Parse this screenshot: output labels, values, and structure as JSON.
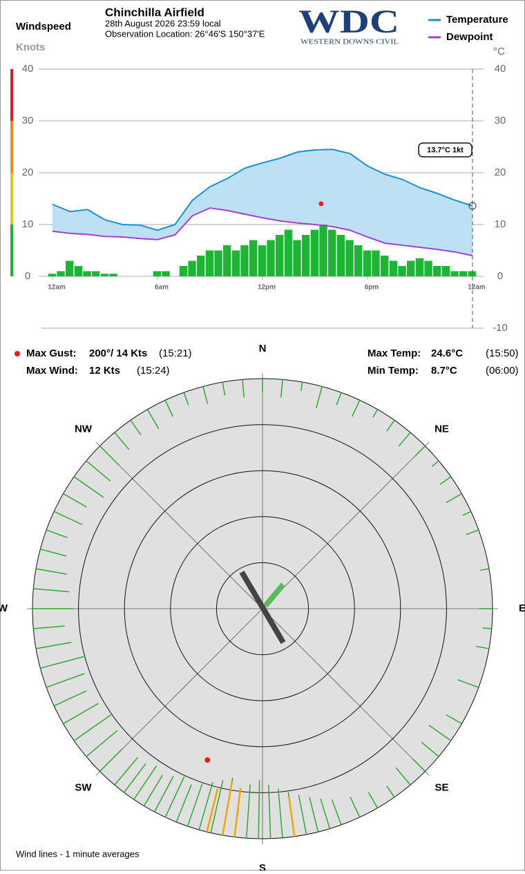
{
  "header": {
    "title": "Chinchilla Airfield",
    "date": "28th August 2026  23:59 local",
    "location": "Observation Location: 26°46'S 150°37'E",
    "logo": "WDC",
    "logo_sub": "WESTERN DOWNS CIVIL"
  },
  "chart_data": {
    "type": "line",
    "y_label": "Windspeed",
    "y_unit": "Knots",
    "y2_unit": "°C",
    "xlim": [
      0,
      24
    ],
    "xticks": [
      {
        "value": 0,
        "label": "12am"
      },
      {
        "value": 6,
        "label": "6am"
      },
      {
        "value": 12,
        "label": "12pm"
      },
      {
        "value": 18,
        "label": "6pm"
      },
      {
        "value": 24,
        "label": "12am"
      }
    ],
    "ylim": [
      0,
      40
    ],
    "yticks": [
      0,
      10,
      20,
      30,
      40
    ],
    "y2lim": [
      -10,
      40
    ],
    "y2ticks": [
      -10,
      0,
      10,
      20,
      30,
      40
    ],
    "grid": true,
    "series": [
      {
        "name": "Temperature",
        "color": "#1a8fd8",
        "axis": "y2",
        "x": [
          0,
          1,
          2,
          3,
          4,
          5,
          6,
          7,
          8,
          9,
          10,
          11,
          12,
          13,
          14,
          15,
          16,
          17,
          18,
          19,
          20,
          21,
          22,
          23,
          24
        ],
        "values": [
          13.9,
          12.5,
          12.9,
          10.9,
          10.0,
          9.9,
          8.9,
          10.0,
          14.7,
          17.3,
          18.9,
          20.9,
          21.9,
          22.8,
          24.0,
          24.4,
          24.5,
          23.7,
          21.3,
          19.7,
          18.7,
          17.1,
          16.0,
          14.7,
          13.6
        ]
      },
      {
        "name": "Dewpoint",
        "color": "#a43fd6",
        "axis": "y2",
        "x": [
          0,
          1,
          2,
          3,
          4,
          5,
          6,
          7,
          8,
          9,
          10,
          11,
          12,
          13,
          14,
          15,
          16,
          17,
          18,
          19,
          20,
          21,
          22,
          23,
          24
        ],
        "values": [
          8.7,
          8.3,
          8.1,
          7.7,
          7.6,
          7.3,
          7.1,
          8.0,
          11.7,
          13.2,
          12.7,
          12.0,
          11.3,
          10.7,
          10.3,
          10.0,
          9.6,
          8.9,
          7.6,
          6.4,
          6.0,
          5.6,
          5.2,
          4.7,
          4.0
        ]
      }
    ],
    "wind_x": [
      0,
      0.5,
      1,
      1.5,
      2,
      2.5,
      3,
      3.5,
      4,
      4.5,
      5,
      5.5,
      6,
      6.5,
      7,
      7.5,
      8,
      8.5,
      9,
      9.5,
      10,
      10.5,
      11,
      11.5,
      12,
      12.5,
      13,
      13.5,
      14,
      14.5,
      15,
      15.5,
      16,
      16.5,
      17,
      17.5,
      18,
      18.5,
      19,
      19.5,
      20,
      20.5,
      21,
      21.5,
      22,
      22.5,
      23,
      23.5,
      24
    ],
    "wind_values": [
      0.5,
      1,
      3,
      2,
      1,
      1,
      0.5,
      0.5,
      0,
      0,
      0,
      0,
      1,
      1,
      0,
      2,
      3,
      4,
      5,
      5,
      6,
      5,
      6,
      7,
      6,
      7,
      8,
      9,
      7,
      8,
      9,
      10,
      9,
      8,
      7,
      6,
      5,
      5,
      4,
      3,
      2,
      3,
      3.5,
      3,
      2,
      2,
      1,
      1,
      1
    ],
    "wind_color": "#1db534",
    "gust": {
      "x": 15.35,
      "value": 14,
      "color": "#e0201c"
    },
    "readout": "13.7°C  1kt"
  },
  "stats": {
    "max_gust_label": "Max Gust:",
    "max_gust": "200°/ 14 Kts",
    "max_gust_time": "(15:21)",
    "max_wind_label": "Max Wind:",
    "max_wind": "12 Kts",
    "max_wind_time": "(15:24)",
    "max_temp_label": "Max Temp:",
    "max_temp": "24.6°C",
    "max_temp_time": "(15:50)",
    "min_temp_label": "Min Temp:",
    "min_temp": "8.7°C",
    "min_temp_time": "(06:00)"
  },
  "rose": {
    "type": "polar",
    "labels": [
      "N",
      "NE",
      "E",
      "SE",
      "S",
      "SW",
      "W",
      "NW"
    ],
    "rlim": [
      0,
      20
    ],
    "rticks": [
      4,
      8,
      12,
      16,
      20
    ],
    "wind_lines": {
      "color": "#2ea82e",
      "directions": [
        0,
        5,
        10,
        15,
        20,
        25,
        30,
        35,
        40,
        45,
        50,
        55,
        60,
        65,
        70,
        80,
        90,
        95,
        100,
        110,
        120,
        125,
        130,
        135,
        140,
        145,
        150,
        155,
        160,
        163,
        166,
        169,
        172,
        175,
        178,
        181,
        184,
        187,
        190,
        193,
        196,
        199,
        202,
        205,
        208,
        211,
        214,
        217,
        220,
        225,
        230,
        235,
        240,
        245,
        250,
        255,
        260,
        265,
        270,
        275,
        280,
        285,
        290,
        295,
        300,
        305,
        310,
        315,
        320,
        325,
        330,
        335,
        340,
        345,
        350,
        355
      ],
      "speeds": [
        3,
        4,
        2,
        5,
        3,
        4,
        2,
        3,
        4,
        3,
        2,
        3,
        4,
        2,
        3,
        2,
        3,
        2,
        3,
        5,
        4,
        6,
        5,
        4,
        5,
        3,
        4,
        5,
        6,
        7,
        8,
        9,
        10,
        11,
        12,
        13,
        12,
        11,
        13,
        12,
        11,
        10,
        9,
        10,
        9,
        8,
        9,
        8,
        8,
        7,
        9,
        10,
        9,
        8,
        9,
        10,
        8,
        7,
        9,
        8,
        7,
        6,
        5,
        7,
        6,
        8,
        7,
        6,
        5,
        4,
        5,
        4,
        3,
        4,
        3,
        4
      ]
    },
    "gust_lines": {
      "color": "#f0a500",
      "directions": [
        172,
        187,
        190,
        194
      ],
      "speeds": [
        9,
        11,
        12,
        10
      ]
    },
    "gust": {
      "direction": 200,
      "speed": 14,
      "color": "#e0201c"
    },
    "note": "Wind lines - 1 minute averages"
  }
}
